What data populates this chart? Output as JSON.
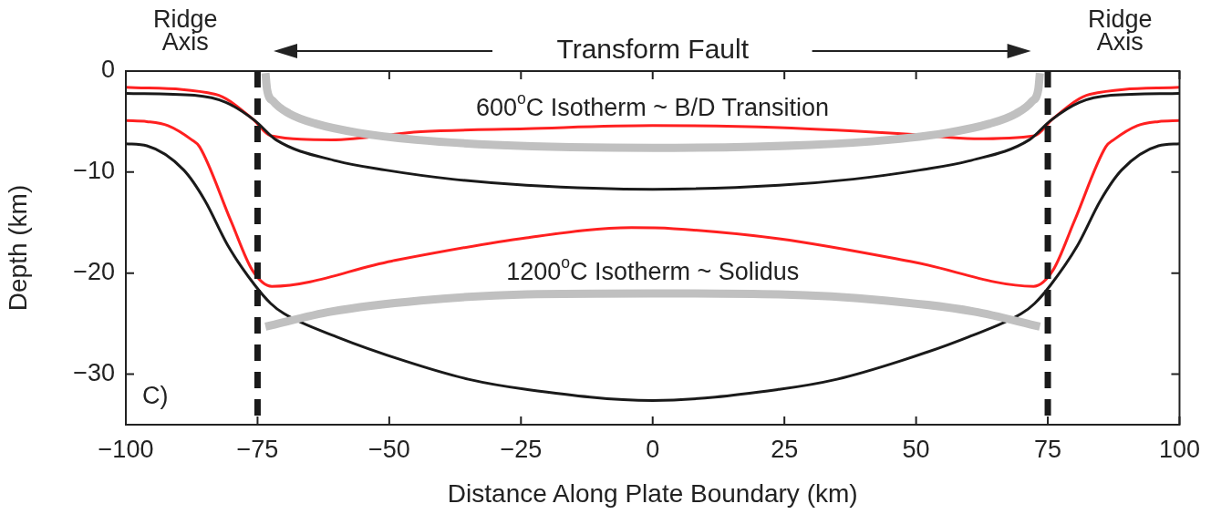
{
  "chart_data": {
    "type": "line",
    "xlabel": "Distance Along Plate Boundary (km)",
    "ylabel": "Depth (km)",
    "xlim": [
      -100,
      100
    ],
    "xticks": [
      -100,
      -75,
      -50,
      -25,
      0,
      25,
      50,
      75,
      100
    ],
    "ylim": [
      -35,
      0
    ],
    "yticks": [
      -30,
      -20,
      -10,
      0
    ],
    "grid": false,
    "legend": false,
    "marker": "none",
    "line_style": "solid",
    "series": [
      {
        "color": "#c0c0c0",
        "x": [
          -73.5,
          -73.2,
          -72,
          -69,
          -64,
          -56,
          -45,
          -30,
          0,
          30,
          45,
          56,
          64,
          69,
          72,
          73.2,
          73.5
        ],
        "values": [
          -0.2,
          -1.8,
          -3.0,
          -4.2,
          -5.2,
          -6.1,
          -6.8,
          -7.3,
          -7.6,
          -7.3,
          -6.8,
          -6.1,
          -5.2,
          -4.2,
          -3.0,
          -1.8,
          -0.2
        ]
      },
      {
        "color": "#c0c0c0",
        "x": [
          -73.5,
          -61,
          -44,
          -24,
          0,
          24,
          44,
          61,
          73.5
        ],
        "values": [
          -25.3,
          -23.8,
          -22.7,
          -22.1,
          -22.0,
          -22.1,
          -22.7,
          -23.8,
          -25.3
        ]
      },
      {
        "color": "#1a1a1a",
        "x": [
          -100,
          -87,
          -81,
          -75.5,
          -71.5,
          -60,
          -50.7,
          -38,
          -24,
          0,
          24,
          38,
          50.7,
          60,
          71.5,
          75.5,
          81,
          87,
          100
        ],
        "values": [
          -2.2,
          -2.4,
          -3.1,
          -4.9,
          -6.8,
          -8.9,
          -9.8,
          -10.7,
          -11.3,
          -11.7,
          -11.3,
          -10.7,
          -9.8,
          -8.9,
          -6.8,
          -4.9,
          -3.1,
          -2.4,
          -2.2
        ]
      },
      {
        "color": "#ff2020",
        "x": [
          -100,
          -83,
          -76,
          -72.5,
          -61,
          -44,
          -24,
          0,
          24,
          50,
          61,
          72.5,
          76,
          83,
          100
        ],
        "values": [
          -1.6,
          -2.3,
          -4.7,
          -6.4,
          -6.8,
          -6.0,
          -5.7,
          -5.4,
          -5.6,
          -6.3,
          -6.7,
          -6.4,
          -4.7,
          -2.3,
          -1.6
        ]
      },
      {
        "color": "#1a1a1a",
        "x": [
          -100,
          -96,
          -89,
          -85,
          -80.6,
          -75.5,
          -72.5,
          -70,
          -60,
          -47,
          -35,
          -24,
          0,
          24,
          35,
          47,
          60,
          70,
          72.5,
          75.5,
          80.6,
          85,
          89,
          96,
          100
        ],
        "values": [
          -7.2,
          -7.4,
          -9.8,
          -12.8,
          -17.3,
          -21.2,
          -23,
          -24,
          -26.3,
          -28.7,
          -30.5,
          -31.5,
          -32.6,
          -31.5,
          -30.5,
          -28.7,
          -26.3,
          -24,
          -23,
          -21.2,
          -17.3,
          -12.8,
          -9.8,
          -7.4,
          -7.2
        ]
      },
      {
        "color": "#ff2020",
        "x": [
          -100,
          -96,
          -92,
          -87.5,
          -86,
          -80,
          -76,
          -72.3,
          -49.5,
          -24,
          -4,
          4,
          24,
          49.5,
          72.3,
          76,
          80,
          86,
          87.5,
          92,
          96,
          100
        ],
        "values": [
          -4.9,
          -5.0,
          -5.4,
          -6.8,
          -7.5,
          -14.9,
          -19.7,
          -21.3,
          -18.8,
          -16.5,
          -15.5,
          -15.6,
          -16.6,
          -18.9,
          -21.3,
          -19.7,
          -14.9,
          -7.5,
          -6.8,
          -5.4,
          -5.0,
          -4.9
        ]
      }
    ],
    "ref_lines": [
      {
        "axis": "x",
        "value": -75,
        "label": "Ridge Axis",
        "color": "#1a1a1a",
        "line_style": "dashed"
      },
      {
        "axis": "x",
        "value": 75,
        "label": "Ridge Axis",
        "color": "#1a1a1a",
        "line_style": "dashed"
      }
    ],
    "annotations": [
      "Transform Fault",
      "600$^{o}$C Isotherm ~ B/D Transition",
      "1200$^{o}$C Isotherm ~ Solidus",
      "C)"
    ]
  }
}
